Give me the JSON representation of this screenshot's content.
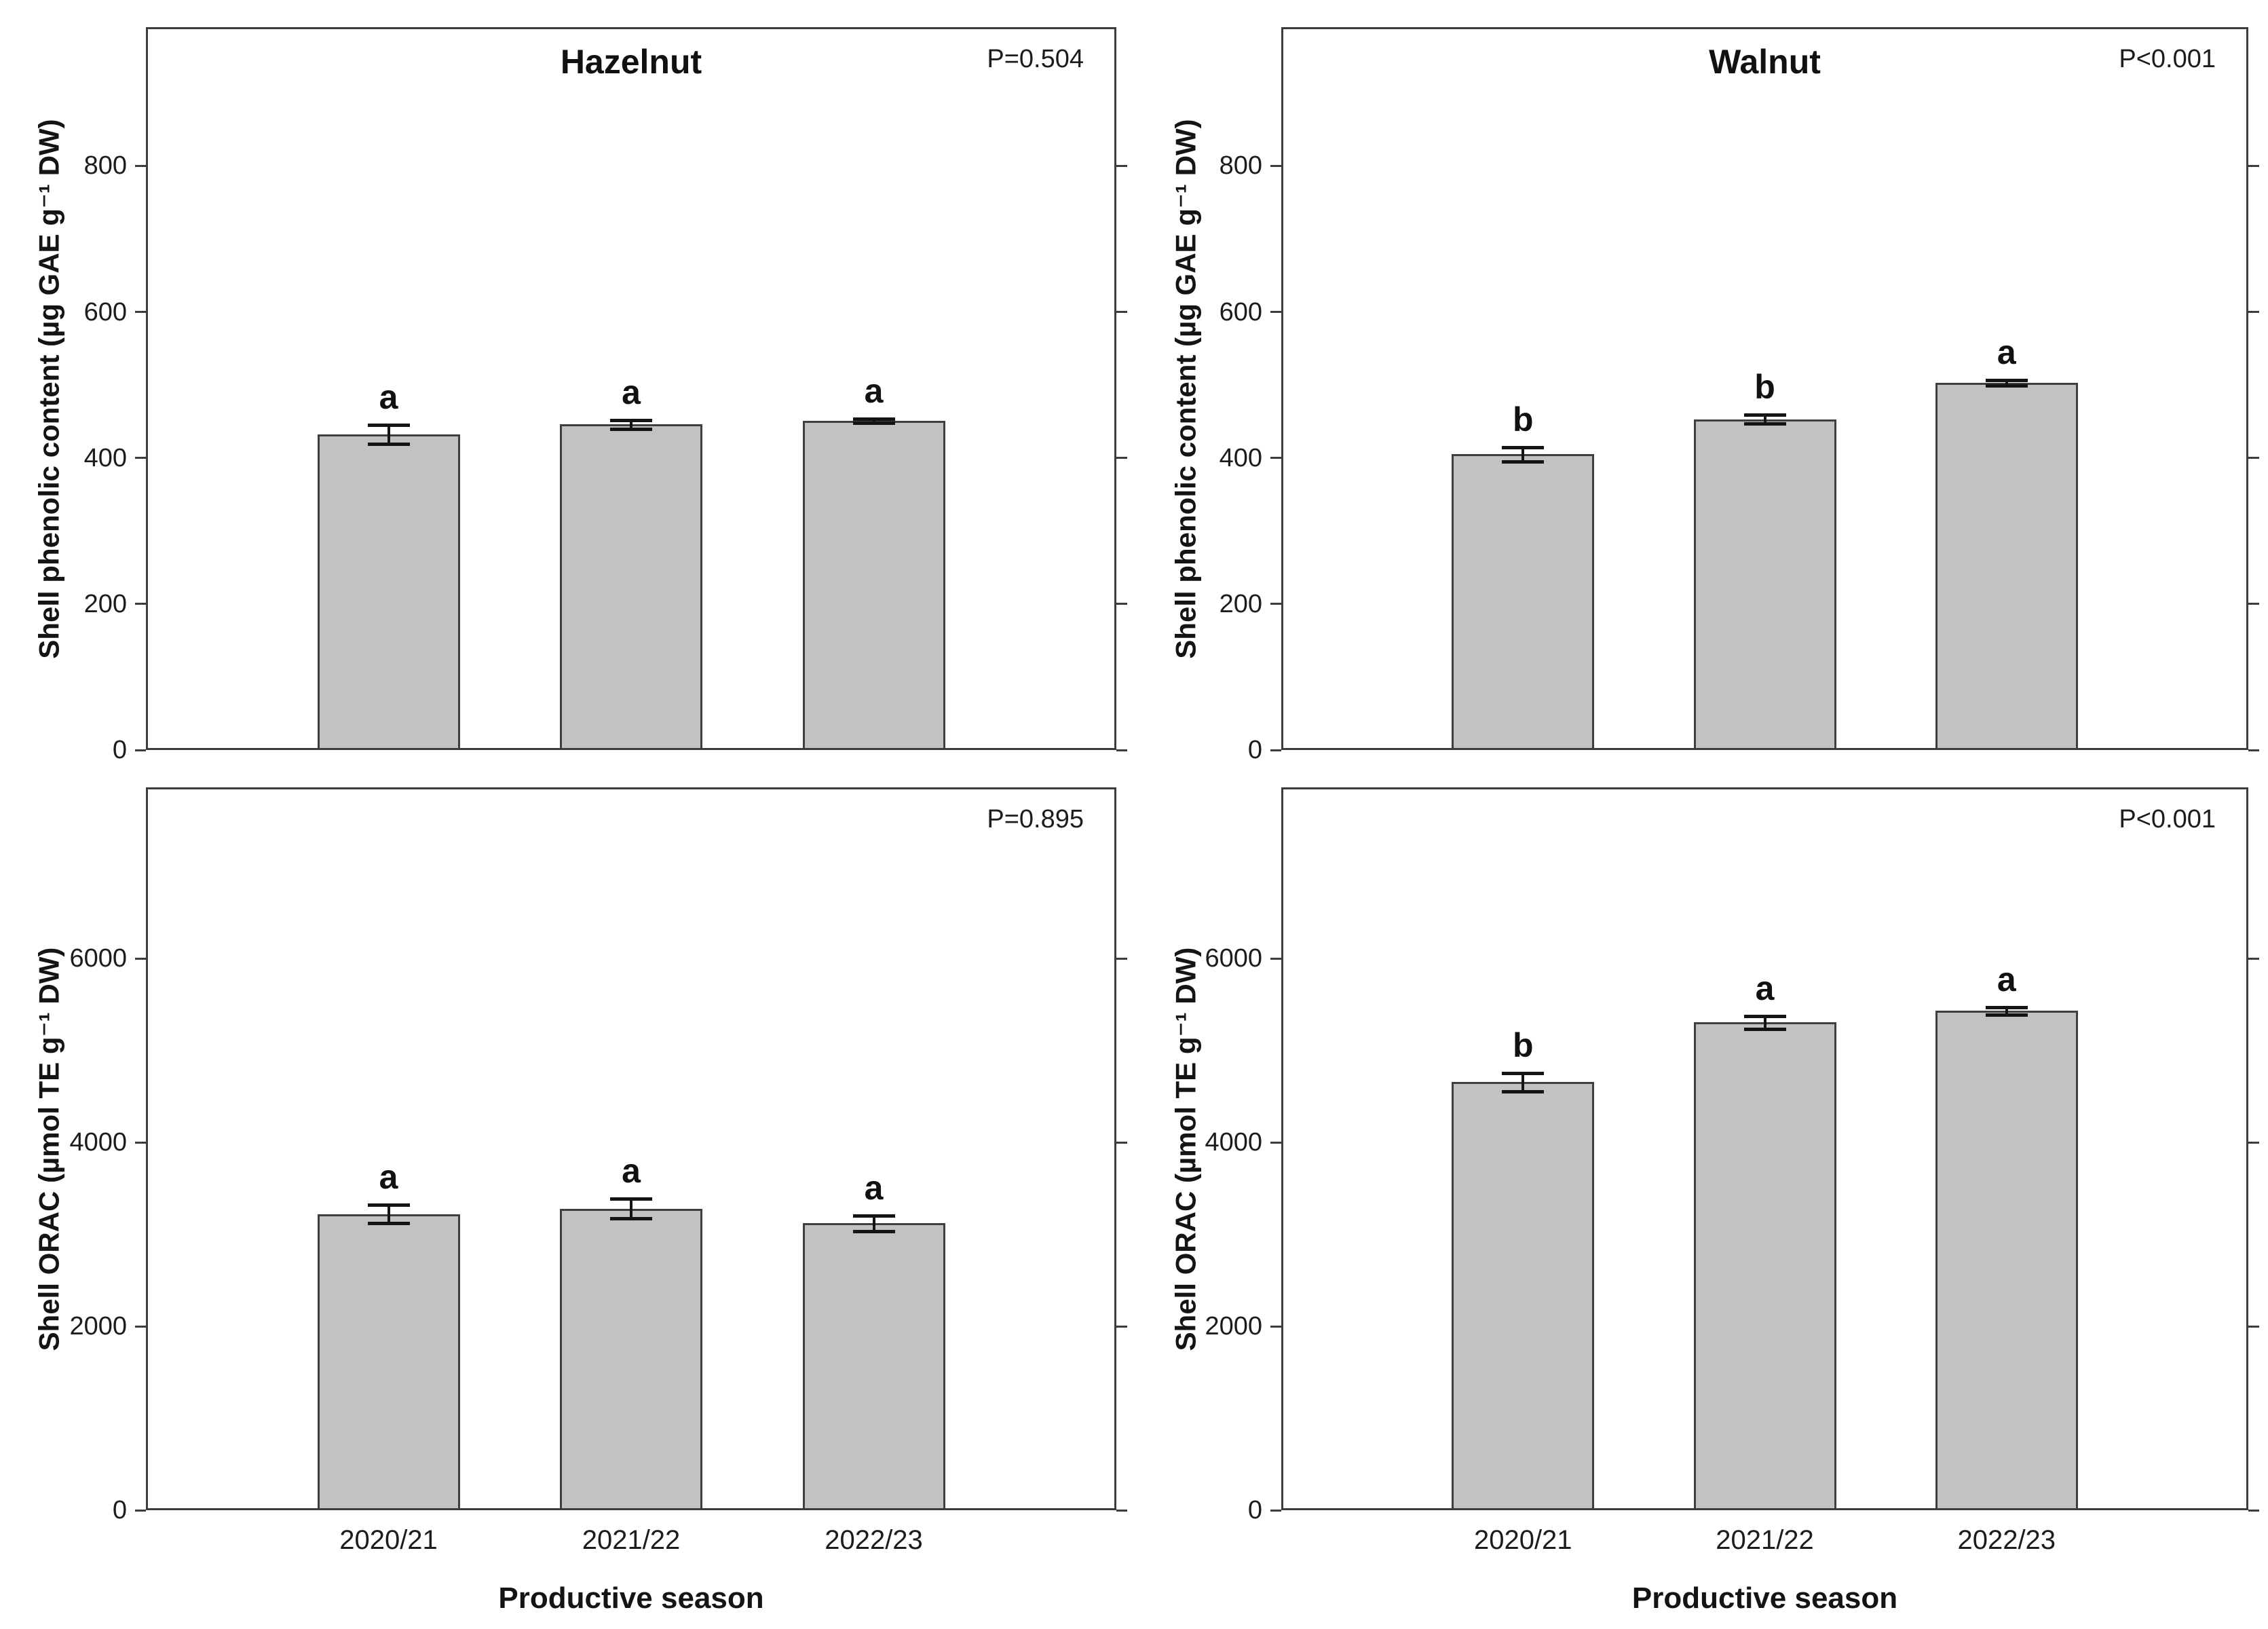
{
  "figure": {
    "background_color": "#ffffff",
    "bar_fill_color": "#c2c2c4",
    "bar_border_color": "#3f3f3f",
    "axis_color": "#3c3c3c",
    "error_bar_color": "#141414",
    "x_axis_title": "Productive season",
    "categories": [
      "2020/21",
      "2021/22",
      "2022/23"
    ]
  },
  "chart_data": [
    {
      "type": "bar",
      "position": "top-left",
      "title": "Hazelnut",
      "p_label": "P=0.504",
      "ylabel": "Shell phenolic content (µg GAE g⁻¹ DW)",
      "xlabel": "",
      "categories": [
        "2020/21",
        "2021/22",
        "2022/23"
      ],
      "values": [
        432,
        446,
        451
      ],
      "errors": [
        13,
        6,
        3
      ],
      "letters": [
        "a",
        "a",
        "a"
      ],
      "yticks": [
        0,
        200,
        400,
        600,
        800
      ],
      "ylim": [
        0,
        990
      ],
      "grid": false,
      "show_x_tick_labels": false,
      "show_x_axis_title": false,
      "show_panel_title": true
    },
    {
      "type": "bar",
      "position": "top-right",
      "title": "Walnut",
      "p_label": "P<0.001",
      "ylabel": "Shell phenolic content (µg GAE g⁻¹ DW)",
      "xlabel": "",
      "categories": [
        "2020/21",
        "2021/22",
        "2022/23"
      ],
      "values": [
        405,
        453,
        503
      ],
      "errors": [
        10,
        6,
        4
      ],
      "letters": [
        "b",
        "b",
        "a"
      ],
      "yticks": [
        0,
        200,
        400,
        600,
        800
      ],
      "ylim": [
        0,
        990
      ],
      "grid": false,
      "show_x_tick_labels": false,
      "show_x_axis_title": false,
      "show_panel_title": true
    },
    {
      "type": "bar",
      "position": "bottom-left",
      "title": "",
      "p_label": "P=0.895",
      "ylabel": "Shell ORAC (µmol TE g⁻¹ DW)",
      "xlabel": "Productive season",
      "categories": [
        "2020/21",
        "2021/22",
        "2022/23"
      ],
      "values": [
        3220,
        3280,
        3120
      ],
      "errors": [
        100,
        110,
        85
      ],
      "letters": [
        "a",
        "a",
        "a"
      ],
      "yticks": [
        0,
        2000,
        4000,
        6000
      ],
      "ylim": [
        0,
        7860
      ],
      "grid": false,
      "show_x_tick_labels": true,
      "show_x_axis_title": true,
      "show_panel_title": false
    },
    {
      "type": "bar",
      "position": "bottom-right",
      "title": "",
      "p_label": "P<0.001",
      "ylabel": "Shell ORAC (µmol TE g⁻¹ DW)",
      "xlabel": "Productive season",
      "categories": [
        "2020/21",
        "2021/22",
        "2022/23"
      ],
      "values": [
        4655,
        5305,
        5430
      ],
      "errors": [
        100,
        70,
        40
      ],
      "letters": [
        "b",
        "a",
        "a"
      ],
      "yticks": [
        0,
        2000,
        4000,
        6000
      ],
      "ylim": [
        0,
        7860
      ],
      "grid": false,
      "show_x_tick_labels": true,
      "show_x_axis_title": true,
      "show_panel_title": false
    }
  ]
}
